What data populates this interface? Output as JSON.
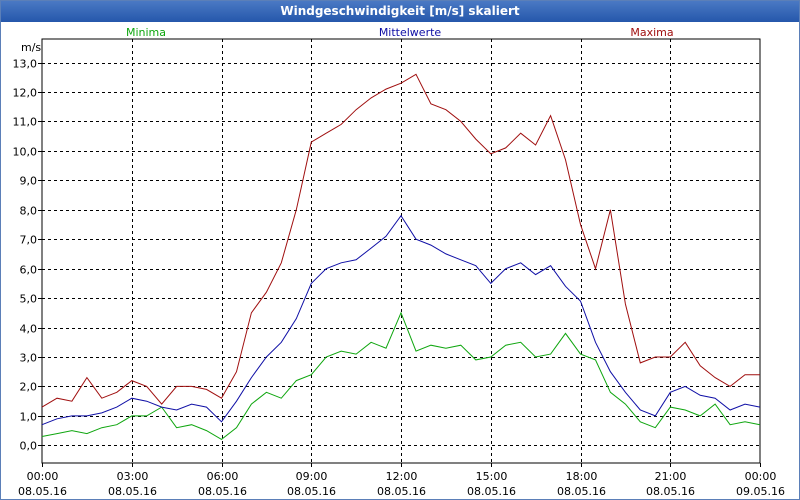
{
  "window": {
    "title": "Windgeschwindigkeit [m/s] skaliert"
  },
  "colors": {
    "min": "#0fa60f",
    "mean": "#0f0fa6",
    "max": "#a00f0f",
    "grid": "#000000"
  },
  "chart_data": {
    "type": "line",
    "title": "Windgeschwindigkeit [m/s] skaliert",
    "ylabel": "m/s",
    "xlabel": "",
    "ylim": [
      -0.6,
      13.8
    ],
    "xlim": [
      0,
      24
    ],
    "yticks": [
      0,
      1,
      2,
      3,
      4,
      5,
      6,
      7,
      8,
      9,
      10,
      11,
      12,
      13
    ],
    "ytick_labels": [
      "0,0",
      "1,0",
      "2,0",
      "3,0",
      "4,0",
      "5,0",
      "6,0",
      "7,0",
      "8,0",
      "9,0",
      "10,0",
      "11,0",
      "12,0",
      "13,0"
    ],
    "xticks": [
      {
        "time": "00:00",
        "date": "08.05.16"
      },
      {
        "time": "03:00",
        "date": "08.05.16"
      },
      {
        "time": "06:00",
        "date": "08.05.16"
      },
      {
        "time": "09:00",
        "date": "08.05.16"
      },
      {
        "time": "12:00",
        "date": "08.05.16"
      },
      {
        "time": "15:00",
        "date": "08.05.16"
      },
      {
        "time": "18:00",
        "date": "08.05.16"
      },
      {
        "time": "21:00",
        "date": "08.05.16"
      },
      {
        "time": "00:00",
        "date": "09.05.16"
      }
    ],
    "grid": true,
    "x": [
      0,
      0.5,
      1,
      1.5,
      2,
      2.5,
      3,
      3.5,
      4,
      4.5,
      5,
      5.5,
      6,
      6.5,
      7,
      7.5,
      8,
      8.5,
      9,
      9.5,
      10,
      10.5,
      11,
      11.5,
      12,
      12.5,
      13,
      13.5,
      14,
      14.5,
      15,
      15.5,
      16,
      16.5,
      17,
      17.5,
      18,
      18.5,
      19,
      19.5,
      20,
      20.5,
      21,
      21.5,
      22,
      22.5,
      23,
      23.5,
      24
    ],
    "series": [
      {
        "name": "Minima",
        "color": "#0fa60f",
        "label_position": "top-left",
        "values": [
          0.3,
          0.4,
          0.5,
          0.4,
          0.6,
          0.7,
          1.0,
          1.0,
          1.3,
          0.6,
          0.7,
          0.5,
          0.2,
          0.6,
          1.4,
          1.8,
          1.6,
          2.2,
          2.4,
          3.0,
          3.2,
          3.1,
          3.5,
          3.3,
          4.5,
          3.2,
          3.4,
          3.3,
          3.4,
          2.9,
          3.0,
          3.4,
          3.5,
          3.0,
          3.1,
          3.8,
          3.1,
          2.9,
          1.8,
          1.4,
          0.8,
          0.6,
          1.3,
          1.2,
          1.0,
          1.4,
          0.7,
          0.8,
          0.7
        ]
      },
      {
        "name": "Mittelwerte",
        "color": "#0f0fa6",
        "label_position": "top-center",
        "values": [
          0.7,
          0.9,
          1.0,
          1.0,
          1.1,
          1.3,
          1.6,
          1.5,
          1.3,
          1.2,
          1.4,
          1.3,
          0.8,
          1.5,
          2.3,
          3.0,
          3.5,
          4.3,
          5.5,
          6.0,
          6.2,
          6.3,
          6.7,
          7.1,
          7.8,
          7.0,
          6.8,
          6.5,
          6.3,
          6.1,
          5.5,
          6.0,
          6.2,
          5.8,
          6.1,
          5.4,
          4.9,
          3.5,
          2.5,
          1.8,
          1.2,
          1.0,
          1.8,
          2.0,
          1.7,
          1.6,
          1.2,
          1.4,
          1.3
        ]
      },
      {
        "name": "Maxima",
        "color": "#a00f0f",
        "label_position": "top-right",
        "values": [
          1.3,
          1.6,
          1.5,
          2.3,
          1.6,
          1.8,
          2.2,
          2.0,
          1.4,
          2.0,
          2.0,
          1.9,
          1.6,
          2.5,
          4.5,
          5.2,
          6.2,
          8.0,
          10.3,
          10.6,
          10.9,
          11.4,
          11.8,
          12.1,
          12.3,
          12.6,
          11.6,
          11.4,
          11.0,
          10.4,
          9.9,
          10.1,
          10.6,
          10.2,
          11.2,
          9.7,
          7.5,
          6.0,
          8.0,
          4.8,
          2.8,
          3.0,
          3.0,
          3.5,
          2.7,
          2.3,
          2.0,
          2.4,
          2.4
        ]
      }
    ]
  }
}
